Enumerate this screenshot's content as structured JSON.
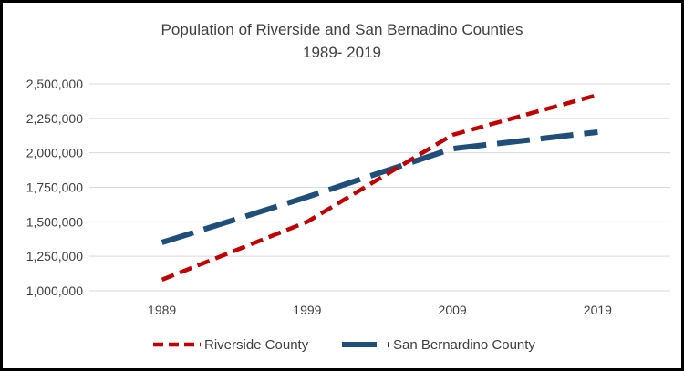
{
  "chart_data": {
    "type": "line",
    "title": "Population of Riverside and San Bernadino Counties",
    "subtitle": "1989- 2019",
    "categories": [
      "1989",
      "1999",
      "2009",
      "2019"
    ],
    "series": [
      {
        "name": "Riverside County",
        "values": [
          1080000,
          1500000,
          2130000,
          2420000
        ],
        "color": "#c00000",
        "line_style": "short-dash"
      },
      {
        "name": "San Bernardino County",
        "values": [
          1350000,
          1680000,
          2030000,
          2150000
        ],
        "color": "#1f4e79",
        "line_style": "long-dash"
      }
    ],
    "ylim": [
      1000000,
      2500000
    ],
    "yticks": [
      1000000,
      1250000,
      1500000,
      1750000,
      2000000,
      2250000,
      2500000
    ],
    "ytick_labels": [
      "1,000,000",
      "1,250,000",
      "1,500,000",
      "1,750,000",
      "2,000,000",
      "2,250,000",
      "2,500,000"
    ],
    "grid": true,
    "legend_position": "bottom",
    "xlabel": "",
    "ylabel": ""
  }
}
